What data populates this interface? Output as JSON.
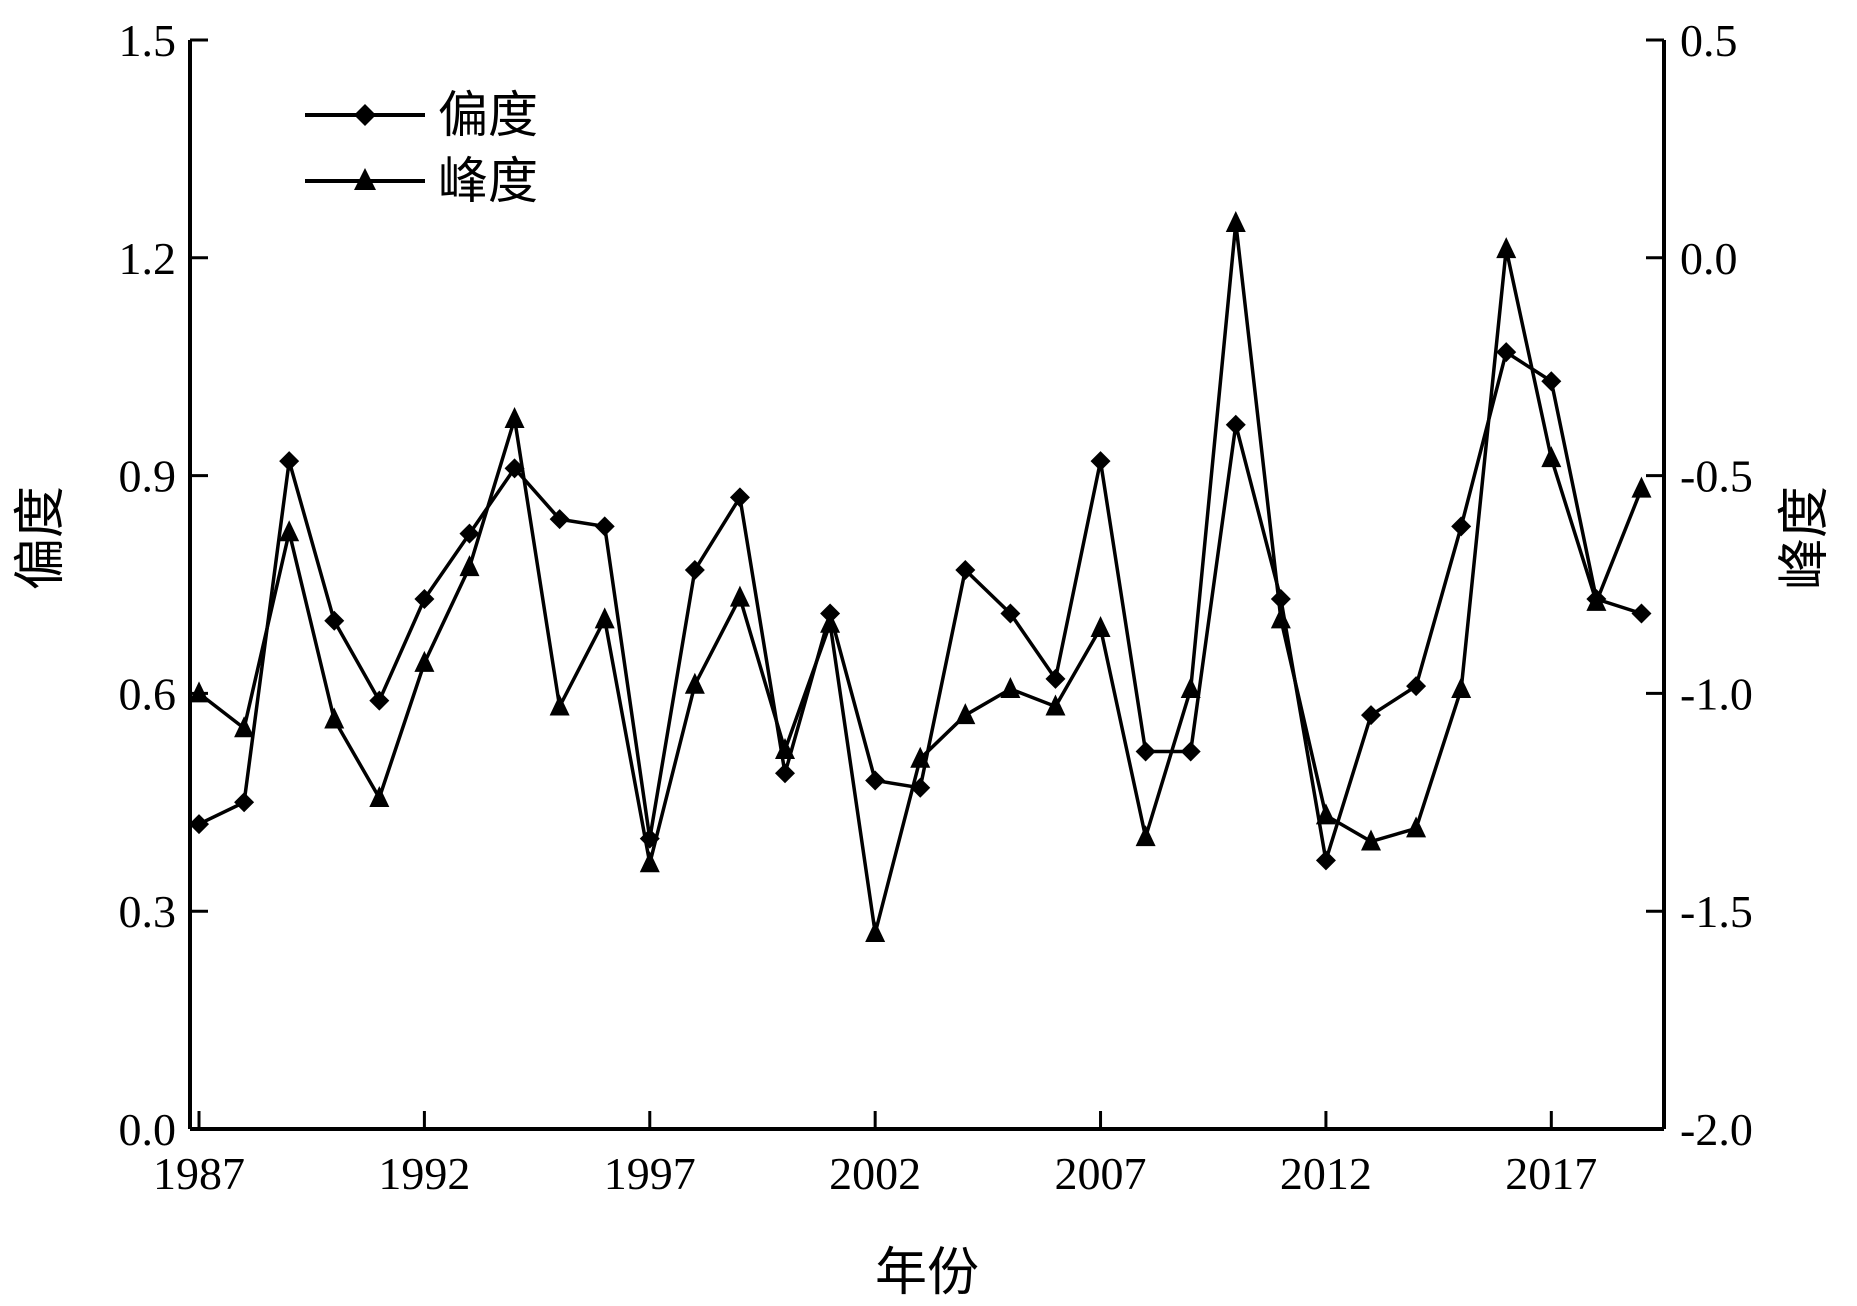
{
  "chart_data": {
    "type": "line",
    "xlabel": "年份",
    "ylabel_left": "偏度",
    "ylabel_right": "峰度",
    "x_ticks": [
      "1987",
      "1992",
      "1997",
      "2002",
      "2007",
      "2012",
      "2017"
    ],
    "y_left_ticks": [
      "0.0",
      "0.3",
      "0.6",
      "0.9",
      "1.2",
      "1.5"
    ],
    "y_right_ticks": [
      "-2.0",
      "-1.5",
      "-1.0",
      "-0.5",
      "0.0",
      "0.5"
    ],
    "xlim": [
      1986.8,
      2019.5
    ],
    "ylim_left": [
      0,
      1.5
    ],
    "ylim_right": [
      -2.0,
      0.5
    ],
    "grid": false,
    "legend_position": "top-left",
    "x": [
      1987,
      1988,
      1989,
      1990,
      1991,
      1992,
      1993,
      1994,
      1995,
      1996,
      1997,
      1998,
      1999,
      2000,
      2001,
      2002,
      2003,
      2004,
      2005,
      2006,
      2007,
      2008,
      2009,
      2010,
      2011,
      2012,
      2013,
      2014,
      2015,
      2016,
      2017,
      2018,
      2019
    ],
    "series": [
      {
        "name": "偏度",
        "axis": "left",
        "marker": "diamond",
        "color": "#000000",
        "values": [
          0.42,
          0.45,
          0.92,
          0.7,
          0.59,
          0.73,
          0.82,
          0.91,
          0.84,
          0.83,
          0.4,
          0.77,
          0.87,
          0.49,
          0.71,
          0.48,
          0.47,
          0.77,
          0.71,
          0.62,
          0.92,
          0.52,
          0.52,
          0.97,
          0.73,
          0.37,
          0.57,
          0.61,
          0.83,
          1.07,
          1.03,
          0.73,
          0.71
        ]
      },
      {
        "name": "峰度",
        "axis": "right",
        "marker": "triangle",
        "color": "#000000",
        "values": [
          -1.0,
          -1.08,
          -0.63,
          -1.06,
          -1.24,
          -0.93,
          -0.71,
          -0.37,
          -1.03,
          -0.83,
          -1.39,
          -0.98,
          -0.78,
          -1.13,
          -0.84,
          -1.55,
          -1.15,
          -1.05,
          -0.99,
          -1.03,
          -0.85,
          -1.33,
          -0.99,
          0.08,
          -0.83,
          -1.28,
          -1.34,
          -1.31,
          -0.99,
          0.02,
          -0.46,
          -0.79,
          -0.53
        ]
      }
    ]
  }
}
